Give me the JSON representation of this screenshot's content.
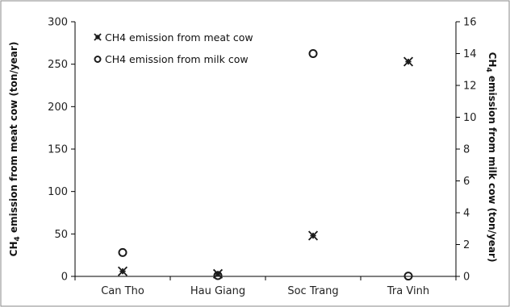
{
  "chart_data": {
    "type": "scatter",
    "categories": [
      "Can Tho",
      "Hau Giang",
      "Soc Trang",
      "Tra Vinh"
    ],
    "series": [
      {
        "name": "CH4 emission from meat cow",
        "axis": "left",
        "marker": "asterisk",
        "values": [
          6,
          3,
          48,
          253
        ]
      },
      {
        "name": "CH4 emission from milk cow",
        "axis": "right",
        "marker": "circle",
        "values": [
          1.5,
          0.05,
          14.0,
          0.02
        ]
      }
    ],
    "y_left": {
      "label_prefix": "CH",
      "label_sub": "4",
      "label_suffix": " emission from meat cow  (ton/year)",
      "ylim": [
        0,
        300
      ],
      "ticks": [
        0,
        50,
        100,
        150,
        200,
        250,
        300
      ]
    },
    "y_right": {
      "label_prefix": "CH",
      "label_sub": "4",
      "label_suffix": " emission from milk cow  (ton/year)",
      "ylim": [
        0,
        16
      ],
      "ticks": [
        0,
        2,
        4,
        6,
        8,
        10,
        12,
        14,
        16
      ]
    },
    "grid": false,
    "legend_position": "top-left",
    "marker_color": "#1a1a1a"
  }
}
